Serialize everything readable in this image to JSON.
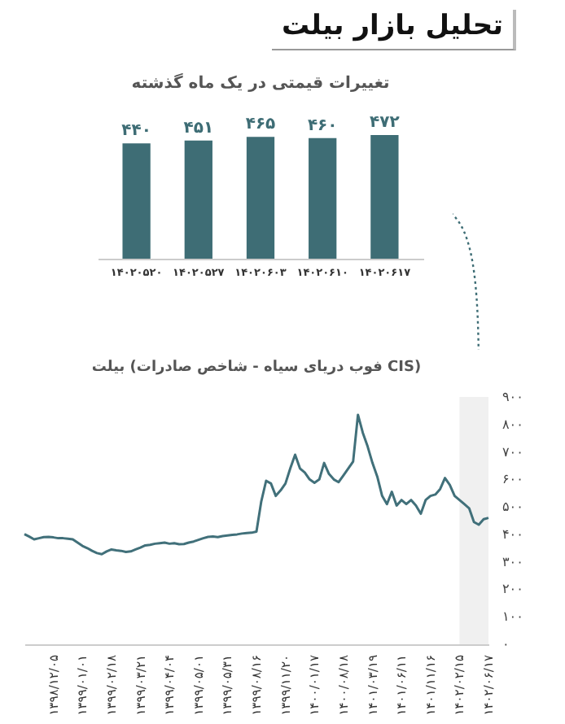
{
  "chart_data": [
    {
      "type": "other",
      "title": "تحلیل بازار بیلت"
    },
    {
      "type": "bar",
      "title": "تغییرات قیمتی در یک ماه گذشته",
      "categories": [
        "۱۴۰۲۰۵۲۰",
        "۱۴۰۲۰۵۲۷",
        "۱۴۰۲۰۶۰۳",
        "۱۴۰۲۰۶۱۰",
        "۱۴۰۲۰۶۱۷"
      ],
      "values": [
        440,
        451,
        465,
        460,
        472
      ],
      "value_labels": [
        "۴۴۰",
        "۴۵۱",
        "۴۶۵",
        "۴۶۰",
        "۴۷۲"
      ],
      "color": "#3e6d75",
      "tick_labels": "x"
    },
    {
      "type": "line",
      "title": "بیلت (فوب دریای سیاه - شاخص صادرات CIS)",
      "categories": [
        null,
        null,
        null,
        null,
        null,
        null,
        "۱۳۹۸/۱۲/۰۵",
        null,
        null,
        null,
        null,
        null,
        "۱۳۹۹/۰۱/۰۱",
        null,
        null,
        null,
        null,
        null,
        "۱۳۹۹/۰۲/۱۸",
        null,
        null,
        null,
        null,
        null,
        "۱۳۹۹/۰۳/۲۱",
        null,
        null,
        null,
        null,
        null,
        "۱۳۹۹/۰۴/۰۴",
        null,
        null,
        null,
        null,
        null,
        "۱۳۹۹/۰۵/۰۱",
        null,
        null,
        null,
        null,
        null,
        "۱۳۹۹/۰۵/۳۱",
        null,
        null,
        null,
        null,
        null,
        "۱۳۹۹/۰۸/۱۶",
        null,
        null,
        null,
        null,
        null,
        "۱۳۹۹/۱۱/۲۰",
        null,
        null,
        null,
        null,
        null,
        "۱۴۰۰/۰۱/۱۷",
        null,
        null,
        null,
        null,
        null,
        "۱۴۰۰/۰۸/۱۸",
        null,
        null,
        null,
        null,
        null,
        "۱۴۰۱/۰۳/۱۹",
        null,
        null,
        null,
        null,
        null,
        "۱۴۰۱/۰۶/۱۱",
        null,
        null,
        null,
        null,
        null,
        "۱۴۰۱/۱۱/۱۶",
        null,
        null,
        null,
        null,
        null,
        "۱۴۰۲/۰۲/۱۵",
        null,
        null,
        null,
        null,
        null,
        "۱۴۰۲/۰۶/۱۷"
      ],
      "series": [
        {
          "color": "#41707a",
          "values": [
            401,
            392,
            382,
            386,
            390,
            391,
            389,
            386,
            386,
            384,
            382,
            370,
            358,
            350,
            340,
            332,
            328,
            338,
            345,
            342,
            340,
            336,
            338,
            345,
            352,
            360,
            362,
            366,
            368,
            370,
            366,
            368,
            364,
            365,
            370,
            374,
            380,
            386,
            391,
            392,
            390,
            394,
            396,
            398,
            400,
            403,
            405,
            406,
            410,
            520,
            595,
            585,
            540,
            560,
            585,
            640,
            690,
            640,
            625,
            600,
            588,
            600,
            660,
            620,
            600,
            590,
            615,
            640,
            665,
            835,
            770,
            720,
            660,
            610,
            540,
            510,
            555,
            505,
            525,
            510,
            525,
            505,
            475,
            525,
            540,
            545,
            565,
            605,
            580,
            540,
            525,
            510,
            495,
            445,
            435,
            455,
            460
          ]
        }
      ],
      "ylim": [
        0,
        900
      ],
      "yticks": [
        {
          "value": 0,
          "label": "۰"
        },
        {
          "value": 100,
          "label": "۱۰۰"
        },
        {
          "value": 200,
          "label": "۲۰۰"
        },
        {
          "value": 300,
          "label": "۳۰۰"
        },
        {
          "value": 400,
          "label": "۴۰۰"
        },
        {
          "value": 500,
          "label": "۵۰۰"
        },
        {
          "value": 600,
          "label": "۶۰۰"
        },
        {
          "value": 700,
          "label": "۷۰۰"
        },
        {
          "value": 800,
          "label": "۸۰۰"
        },
        {
          "value": 900,
          "label": "۹۰۰"
        }
      ],
      "bands": [
        {
          "axis": "x",
          "from": "۱۴۰۲/۰۲/۱۵",
          "to": "۱۴۰۲/۰۶/۱۷",
          "color": "#f0f0f0"
        }
      ]
    }
  ]
}
